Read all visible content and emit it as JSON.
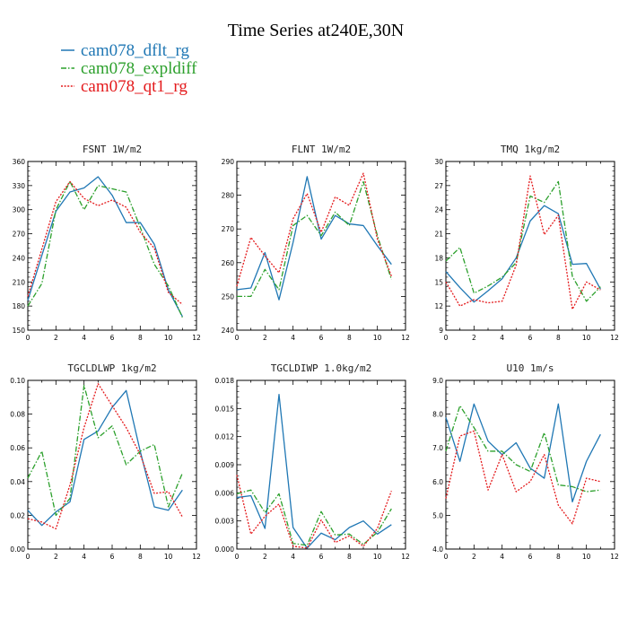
{
  "title": "Time Series at240E,30N",
  "colors": {
    "cam078_dflt_rg": "#1f77b4",
    "cam078_expldiff": "#2ca02c",
    "cam078_qt1_rg": "#e41a1c"
  },
  "legend": [
    {
      "name": "cam078_dflt_rg",
      "color": "#1f77b4",
      "dash": "solid"
    },
    {
      "name": "cam078_expldiff",
      "color": "#2ca02c",
      "dash": "dashdot"
    },
    {
      "name": "cam078_qt1_rg",
      "color": "#e41a1c",
      "dash": "dotted"
    }
  ],
  "chart_data": [
    {
      "type": "line",
      "title": "FSNT   1W/m2",
      "x": [
        0,
        1,
        2,
        3,
        4,
        5,
        6,
        7,
        8,
        9,
        10,
        11
      ],
      "xlim": [
        0,
        12
      ],
      "xticks": [
        0,
        2,
        4,
        6,
        8,
        10,
        12
      ],
      "ylim": [
        150,
        360
      ],
      "yticks": [
        150,
        180,
        210,
        240,
        270,
        300,
        330,
        360
      ],
      "yticklabels": [
        "150",
        "180",
        "210",
        "240",
        "270",
        "300",
        "330",
        "360"
      ],
      "series": [
        {
          "name": "cam078_dflt_rg",
          "values": [
            187,
            243,
            298,
            322,
            327,
            341,
            318,
            284,
            284,
            257,
            200,
            167
          ]
        },
        {
          "name": "cam078_expldiff",
          "values": [
            180,
            208,
            300,
            335,
            300,
            330,
            326,
            322,
            278,
            232,
            205,
            166
          ]
        },
        {
          "name": "cam078_qt1_rg",
          "values": [
            192,
            251,
            310,
            335,
            314,
            305,
            312,
            303,
            272,
            252,
            197,
            182
          ]
        }
      ]
    },
    {
      "type": "line",
      "title": "FLNT   1W/m2",
      "x": [
        0,
        1,
        2,
        3,
        4,
        5,
        6,
        7,
        8,
        9,
        10,
        11
      ],
      "xlim": [
        0,
        12
      ],
      "xticks": [
        0,
        2,
        4,
        6,
        8,
        10,
        12
      ],
      "ylim": [
        240,
        290
      ],
      "yticks": [
        240,
        250,
        260,
        270,
        280,
        290
      ],
      "yticklabels": [
        "240",
        "250",
        "260",
        "270",
        "280",
        "290"
      ],
      "series": [
        {
          "name": "cam078_dflt_rg",
          "values": [
            252,
            252.5,
            263,
            249,
            266,
            285.5,
            267,
            274,
            271.5,
            271,
            265,
            259.5
          ]
        },
        {
          "name": "cam078_expldiff",
          "values": [
            250,
            250,
            258,
            252,
            271,
            274,
            268,
            275,
            271,
            284,
            268,
            255
          ]
        },
        {
          "name": "cam078_qt1_rg",
          "values": [
            253,
            267.5,
            262,
            257,
            273,
            280.5,
            269,
            279.5,
            277,
            286.5,
            267,
            256
          ]
        }
      ]
    },
    {
      "type": "line",
      "title": "TMQ   1kg/m2",
      "x": [
        0,
        1,
        2,
        3,
        4,
        5,
        6,
        7,
        8,
        9,
        10,
        11
      ],
      "xlim": [
        0,
        12
      ],
      "xticks": [
        0,
        2,
        4,
        6,
        8,
        10,
        12
      ],
      "ylim": [
        9,
        30
      ],
      "yticks": [
        9,
        12,
        15,
        18,
        21,
        24,
        27,
        30
      ],
      "yticklabels": [
        "9",
        "12",
        "15",
        "18",
        "21",
        "24",
        "27",
        "30"
      ],
      "series": [
        {
          "name": "cam078_dflt_rg",
          "values": [
            16.3,
            14.3,
            12.5,
            13.9,
            15.4,
            18.0,
            22.6,
            24.5,
            23.5,
            17.2,
            17.3,
            14.1
          ]
        },
        {
          "name": "cam078_expldiff",
          "values": [
            17.6,
            19.3,
            13.6,
            14.5,
            15.6,
            17.4,
            25.7,
            24.9,
            27.5,
            15.7,
            12.6,
            14.4
          ]
        },
        {
          "name": "cam078_qt1_rg",
          "values": [
            15.0,
            12.0,
            12.8,
            12.4,
            12.6,
            17.1,
            28.2,
            20.9,
            23.3,
            11.6,
            15.0,
            14.0
          ]
        }
      ]
    },
    {
      "type": "line",
      "title": "TGCLDLWP   1kg/m2",
      "x": [
        0,
        1,
        2,
        3,
        4,
        5,
        6,
        7,
        8,
        9,
        10,
        11
      ],
      "xlim": [
        0,
        12
      ],
      "xticks": [
        0,
        2,
        4,
        6,
        8,
        10,
        12
      ],
      "ylim": [
        0,
        0.1
      ],
      "yticks": [
        0,
        0.02,
        0.04,
        0.06,
        0.08,
        0.1
      ],
      "yticklabels": [
        "0.00",
        "0.02",
        "0.04",
        "0.06",
        "0.08",
        "0.10"
      ],
      "series": [
        {
          "name": "cam078_dflt_rg",
          "values": [
            0.023,
            0.014,
            0.022,
            0.028,
            0.065,
            0.07,
            0.084,
            0.094,
            0.058,
            0.025,
            0.023,
            0.035
          ]
        },
        {
          "name": "cam078_expldiff",
          "values": [
            0.042,
            0.058,
            0.02,
            0.03,
            0.097,
            0.066,
            0.073,
            0.05,
            0.058,
            0.062,
            0.025,
            0.045
          ]
        },
        {
          "name": "cam078_qt1_rg",
          "values": [
            0.018,
            0.016,
            0.012,
            0.038,
            0.072,
            0.098,
            0.085,
            0.072,
            0.056,
            0.033,
            0.034,
            0.019
          ]
        }
      ]
    },
    {
      "type": "line",
      "title": "TGCLDIWP   1.0kg/m2",
      "x": [
        0,
        1,
        2,
        3,
        4,
        5,
        6,
        7,
        8,
        9,
        10,
        11
      ],
      "xlim": [
        0,
        12
      ],
      "xticks": [
        0,
        2,
        4,
        6,
        8,
        10,
        12
      ],
      "ylim": [
        0,
        0.018
      ],
      "yticks": [
        0,
        0.003,
        0.006,
        0.009,
        0.012,
        0.015,
        0.018
      ],
      "yticklabels": [
        "0.000",
        "0.003",
        "0.006",
        "0.009",
        "0.012",
        "0.015",
        "0.018"
      ],
      "series": [
        {
          "name": "cam078_dflt_rg",
          "values": [
            0.0055,
            0.0057,
            0.0022,
            0.0165,
            0.0023,
            0.0001,
            0.0017,
            0.001,
            0.0023,
            0.003,
            0.0016,
            0.0026
          ]
        },
        {
          "name": "cam078_expldiff",
          "values": [
            0.0059,
            0.0063,
            0.0039,
            0.0059,
            0.0006,
            0.0004,
            0.004,
            0.0015,
            0.0016,
            0.0005,
            0.0018,
            0.0043
          ]
        },
        {
          "name": "cam078_qt1_rg",
          "values": [
            0.0079,
            0.0016,
            0.0035,
            0.0048,
            0.0003,
            0.0001,
            0.0031,
            0.0007,
            0.0014,
            0.0003,
            0.0022,
            0.0062
          ]
        }
      ]
    },
    {
      "type": "line",
      "title": "U10   1m/s",
      "x": [
        0,
        1,
        2,
        3,
        4,
        5,
        6,
        7,
        8,
        9,
        10,
        11
      ],
      "xlim": [
        0,
        12
      ],
      "xticks": [
        0,
        2,
        4,
        6,
        8,
        10,
        12
      ],
      "ylim": [
        4,
        9
      ],
      "yticks": [
        4,
        5,
        6,
        7,
        8,
        9
      ],
      "yticklabels": [
        "4.0",
        "5.0",
        "6.0",
        "7.0",
        "8.0",
        "9.0"
      ],
      "series": [
        {
          "name": "cam078_dflt_rg",
          "values": [
            7.9,
            6.6,
            8.3,
            7.2,
            6.8,
            7.15,
            6.4,
            6.1,
            8.3,
            5.4,
            6.6,
            7.4
          ]
        },
        {
          "name": "cam078_expldiff",
          "values": [
            6.9,
            8.25,
            7.6,
            6.9,
            6.9,
            6.5,
            6.3,
            7.45,
            5.9,
            5.85,
            5.7,
            5.75
          ]
        },
        {
          "name": "cam078_qt1_rg",
          "values": [
            5.5,
            7.35,
            7.5,
            5.75,
            6.8,
            5.7,
            6.0,
            6.8,
            5.3,
            4.75,
            6.1,
            6.0
          ]
        }
      ]
    }
  ]
}
